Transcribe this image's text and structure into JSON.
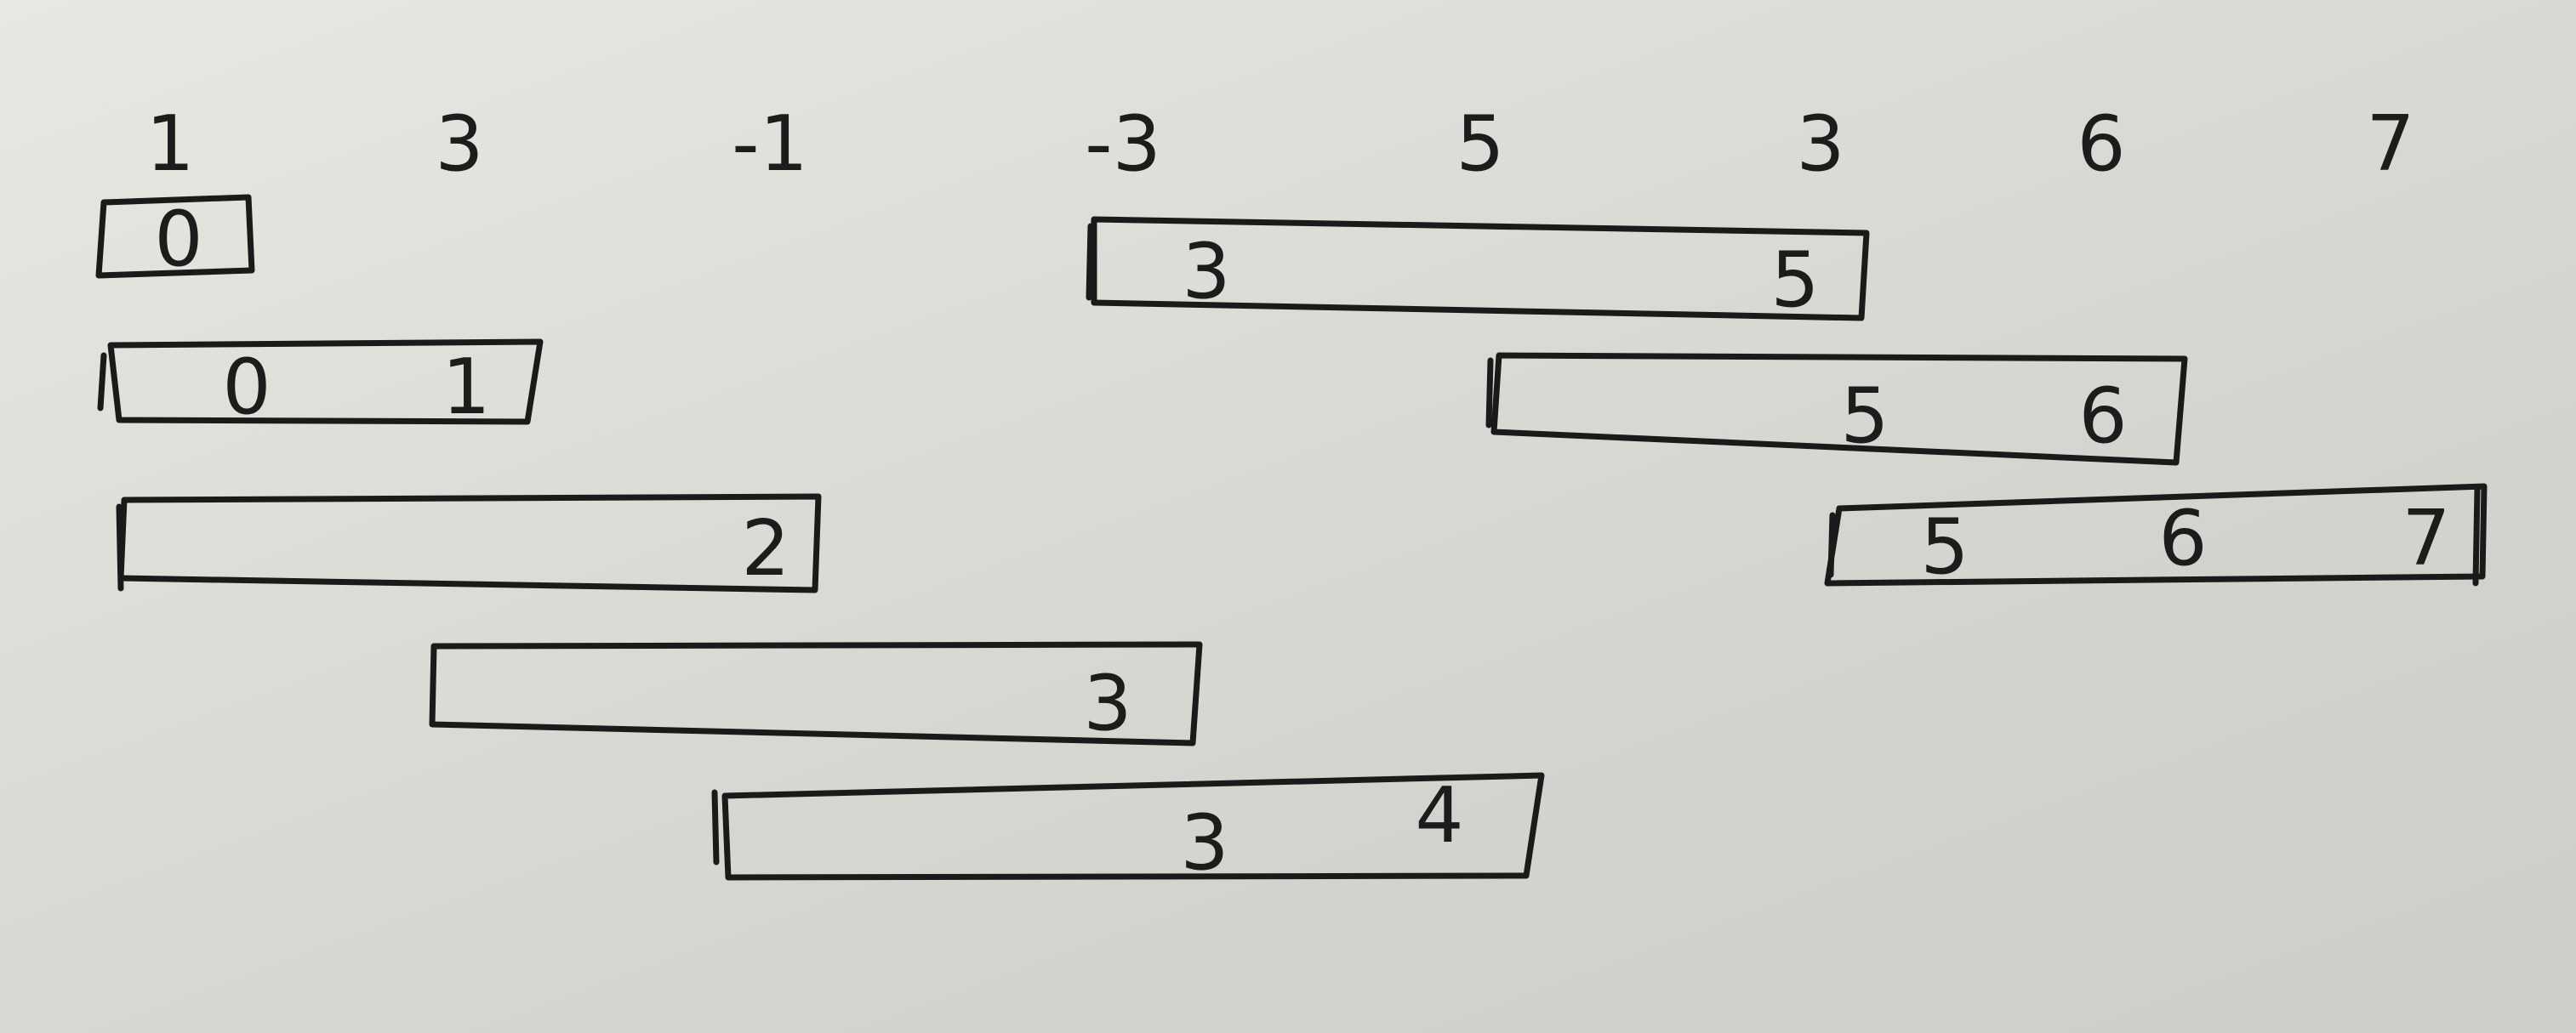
{
  "array": [
    "1",
    "3",
    "-1",
    "-3",
    "5",
    "3",
    "6",
    "7"
  ],
  "windows": [
    {
      "items": [
        "0"
      ]
    },
    {
      "items": [
        "0",
        "1"
      ]
    },
    {
      "items": [
        "2"
      ]
    },
    {
      "items": [
        "3"
      ]
    },
    {
      "items": [
        "3",
        "4"
      ]
    },
    {
      "items": [
        "3",
        "5"
      ]
    },
    {
      "items": [
        "5",
        "6"
      ]
    },
    {
      "items": [
        "5",
        "6",
        "7"
      ]
    }
  ],
  "colors": {
    "paper": "#dedcd7",
    "ink": "#1a1a1a"
  }
}
